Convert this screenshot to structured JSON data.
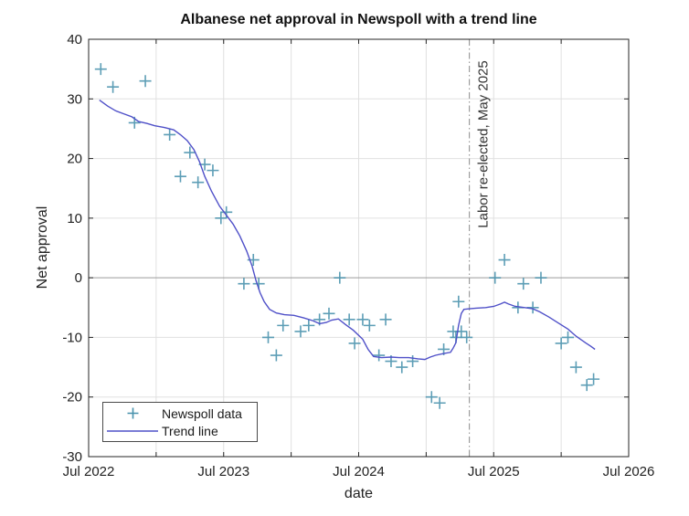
{
  "title": "Albanese net approval in Newspoll with a trend line",
  "axis": {
    "xlabel": "date",
    "ylabel": "Net approval"
  },
  "annotation": {
    "label": "Labor re-elected, May 2025",
    "x": 2.82
  },
  "legend": {
    "items": [
      {
        "label": "Newspoll data",
        "sample": "plus-marker"
      },
      {
        "label": "Trend line",
        "sample": "line"
      }
    ]
  },
  "colors": {
    "marker": "#4791ac",
    "trend": "#4f50c8",
    "grid": "#e0e0e0",
    "zero_line": "#9a9a9a",
    "axis_box": "#262626",
    "tick_text": "#222222",
    "annotation_line": "#8a8a8a",
    "title_text": "#111111"
  },
  "chart_data": {
    "type": "scatter",
    "title": "Albanese net approval in Newspoll with a trend line",
    "xlabel": "date",
    "ylabel": "Net approval",
    "x_unit": "years since Jul 2022",
    "xlim": [
      0,
      4
    ],
    "ylim": [
      -30,
      40
    ],
    "x_tick_positions": [
      0,
      1,
      2,
      3,
      4
    ],
    "x_tick_labels": [
      "Jul 2022",
      "Jul 2023",
      "Jul 2024",
      "Jul 2025",
      "Jul 2026"
    ],
    "x_minor_tick_positions": [
      0.5,
      1.5,
      2.5,
      3.5
    ],
    "y_ticks": [
      -30,
      -20,
      -10,
      0,
      10,
      20,
      30,
      40
    ],
    "grid": true,
    "legend_position": "bottom-left-inside",
    "annotation_line_x": 2.82,
    "series": [
      {
        "name": "Newspoll data",
        "type": "scatter",
        "marker": "+",
        "points": [
          [
            0.09,
            35
          ],
          [
            0.18,
            32
          ],
          [
            0.34,
            26
          ],
          [
            0.42,
            33
          ],
          [
            0.6,
            24
          ],
          [
            0.68,
            17
          ],
          [
            0.75,
            21
          ],
          [
            0.81,
            16
          ],
          [
            0.86,
            19
          ],
          [
            0.92,
            18
          ],
          [
            0.98,
            10
          ],
          [
            1.02,
            11
          ],
          [
            1.15,
            -1
          ],
          [
            1.22,
            3
          ],
          [
            1.26,
            -1
          ],
          [
            1.33,
            -10
          ],
          [
            1.39,
            -13
          ],
          [
            1.44,
            -8
          ],
          [
            1.57,
            -9
          ],
          [
            1.63,
            -8
          ],
          [
            1.71,
            -7
          ],
          [
            1.78,
            -6
          ],
          [
            1.86,
            0
          ],
          [
            1.93,
            -7
          ],
          [
            1.97,
            -11
          ],
          [
            2.03,
            -7
          ],
          [
            2.08,
            -8
          ],
          [
            2.15,
            -13
          ],
          [
            2.2,
            -7
          ],
          [
            2.24,
            -14
          ],
          [
            2.32,
            -15
          ],
          [
            2.4,
            -14
          ],
          [
            2.54,
            -20
          ],
          [
            2.6,
            -21
          ],
          [
            2.63,
            -12
          ],
          [
            2.7,
            -9
          ],
          [
            2.72,
            -10
          ],
          [
            2.74,
            -4
          ],
          [
            2.76,
            -9
          ],
          [
            2.8,
            -10
          ],
          [
            3.01,
            0
          ],
          [
            3.08,
            3
          ],
          [
            3.18,
            -5
          ],
          [
            3.22,
            -1
          ],
          [
            3.29,
            -5
          ],
          [
            3.35,
            0
          ],
          [
            3.5,
            -11
          ],
          [
            3.55,
            -10
          ],
          [
            3.61,
            -15
          ],
          [
            3.69,
            -18
          ],
          [
            3.74,
            -17
          ]
        ]
      },
      {
        "name": "Trend line",
        "type": "line",
        "points": [
          [
            0.08,
            29.8
          ],
          [
            0.14,
            28.8
          ],
          [
            0.2,
            28.0
          ],
          [
            0.26,
            27.5
          ],
          [
            0.32,
            27.0
          ],
          [
            0.37,
            26.2
          ],
          [
            0.43,
            25.9
          ],
          [
            0.49,
            25.5
          ],
          [
            0.56,
            25.2
          ],
          [
            0.63,
            24.8
          ],
          [
            0.68,
            24.0
          ],
          [
            0.73,
            23.0
          ],
          [
            0.78,
            21.5
          ],
          [
            0.82,
            19.5
          ],
          [
            0.86,
            17.0
          ],
          [
            0.91,
            14.5
          ],
          [
            0.97,
            12.0
          ],
          [
            1.02,
            10.5
          ],
          [
            1.07,
            9.0
          ],
          [
            1.12,
            7.0
          ],
          [
            1.17,
            4.5
          ],
          [
            1.21,
            2.0
          ],
          [
            1.24,
            -0.5
          ],
          [
            1.27,
            -2.5
          ],
          [
            1.3,
            -4.0
          ],
          [
            1.34,
            -5.3
          ],
          [
            1.39,
            -5.9
          ],
          [
            1.45,
            -6.2
          ],
          [
            1.52,
            -6.3
          ],
          [
            1.59,
            -6.7
          ],
          [
            1.66,
            -7.2
          ],
          [
            1.71,
            -7.7
          ],
          [
            1.76,
            -7.5
          ],
          [
            1.8,
            -7.1
          ],
          [
            1.85,
            -6.9
          ],
          [
            1.9,
            -7.8
          ],
          [
            1.96,
            -8.8
          ],
          [
            2.03,
            -10.3
          ],
          [
            2.07,
            -12.0
          ],
          [
            2.11,
            -13.2
          ],
          [
            2.17,
            -13.4
          ],
          [
            2.24,
            -13.3
          ],
          [
            2.3,
            -13.4
          ],
          [
            2.37,
            -13.4
          ],
          [
            2.44,
            -13.6
          ],
          [
            2.49,
            -13.7
          ],
          [
            2.53,
            -13.3
          ],
          [
            2.57,
            -13.0
          ],
          [
            2.63,
            -12.7
          ],
          [
            2.68,
            -12.5
          ],
          [
            2.7,
            -11.8
          ],
          [
            2.72,
            -10.9
          ],
          [
            2.74,
            -8.0
          ],
          [
            2.76,
            -6.0
          ],
          [
            2.78,
            -5.3
          ],
          [
            2.82,
            -5.2
          ],
          [
            2.87,
            -5.1
          ],
          [
            2.94,
            -5.0
          ],
          [
            3.0,
            -4.8
          ],
          [
            3.05,
            -4.4
          ],
          [
            3.08,
            -4.1
          ],
          [
            3.11,
            -4.4
          ],
          [
            3.16,
            -4.8
          ],
          [
            3.23,
            -5.0
          ],
          [
            3.29,
            -5.2
          ],
          [
            3.34,
            -5.7
          ],
          [
            3.41,
            -6.6
          ],
          [
            3.48,
            -7.6
          ],
          [
            3.55,
            -8.6
          ],
          [
            3.61,
            -9.8
          ],
          [
            3.68,
            -10.9
          ],
          [
            3.72,
            -11.5
          ],
          [
            3.75,
            -12.0
          ]
        ]
      }
    ]
  }
}
